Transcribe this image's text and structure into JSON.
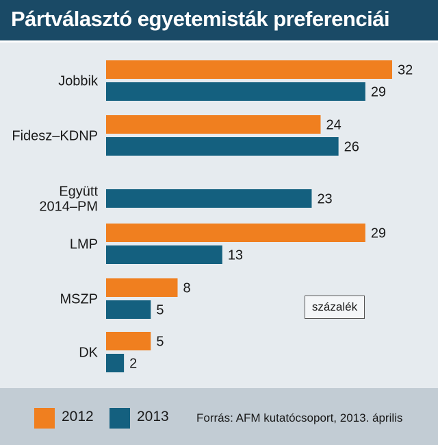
{
  "title": "Pártválasztó egyetemisták preferenciái",
  "unit_label": "százalék",
  "source": "Forrás: AFM kutatócsoport, 2013. április",
  "colors": {
    "header": "#1a4a66",
    "s2012": "#f07f1f",
    "s2013": "#14607f",
    "background": "#e6ebef",
    "footer": "#c2ccd4"
  },
  "chart_data": {
    "type": "bar",
    "orientation": "horizontal",
    "categories": [
      "Jobbik",
      "Fidesz–KDNP",
      "Együtt 2014–PM",
      "LMP",
      "MSZP",
      "DK"
    ],
    "category_lines": [
      [
        "Jobbik"
      ],
      [
        "Fidesz–KDNP"
      ],
      [
        "Együtt",
        "2014–PM"
      ],
      [
        "LMP"
      ],
      [
        "MSZP"
      ],
      [
        "DK"
      ]
    ],
    "series": [
      {
        "name": "2012",
        "color": "#f07f1f",
        "values": [
          32,
          24,
          null,
          29,
          8,
          5
        ]
      },
      {
        "name": "2013",
        "color": "#14607f",
        "values": [
          29,
          26,
          23,
          13,
          5,
          2
        ]
      }
    ],
    "data_labels": true,
    "xlim": [
      0,
      32
    ],
    "grid": false,
    "legend": "bottom-left"
  }
}
